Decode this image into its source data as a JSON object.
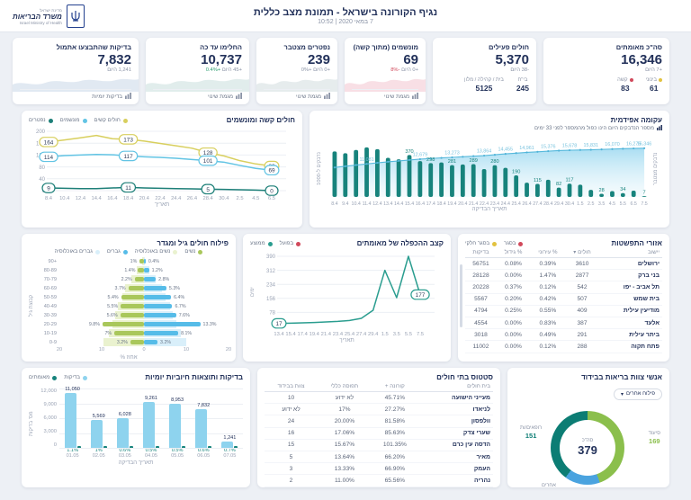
{
  "header": {
    "title": "נגיף הקורונה בישראל - תמונת מצב כללית",
    "subtitle": "7 במאי 2020 | 10:52",
    "logo_top": "מדינת ישראל",
    "logo_title": "משרד הבריאות",
    "logo_subtitle": "Israel Ministry of Health"
  },
  "icons": {
    "chevron_down": "▾"
  },
  "kpi_cards": [
    {
      "title": "סה\"כ מאומתים",
      "value": "16,346",
      "delta": "+7 היום",
      "subs": [
        {
          "label": "בינוני",
          "value": "61",
          "dot": "#e2c23f"
        },
        {
          "label": "קשה",
          "value": "83",
          "dot": "#d1495b"
        }
      ]
    },
    {
      "title": "חולים פעילים",
      "value": "5,370",
      "delta": "-38 היום",
      "subs": [
        {
          "label": "בי\"ח",
          "value": "245"
        },
        {
          "label": "בית / קהילה / מלון",
          "value": "5125"
        }
      ]
    },
    {
      "title": "מונשמים (מתוך קשה)",
      "value": "69",
      "delta": "+0 היום",
      "delta_extra": {
        "text": "-8%",
        "color": "#d1495b"
      },
      "footer": "מגמת שינוי",
      "spark_color": "#f0b9c6"
    },
    {
      "title": "נפטרים מצטבר",
      "value": "239",
      "delta": "+0 היום",
      "delta_extra": {
        "text": "+0%",
        "color": "#8a93a6"
      },
      "footer": "מגמת שינוי",
      "spark_color": "#c8d4d6"
    },
    {
      "title": "החלימו עד כה",
      "value": "10,737",
      "delta": "+45 היום",
      "delta_extra": {
        "text": "+0.4%",
        "color": "#2e9e71"
      },
      "footer": "מגמת שינוי",
      "spark_color": "#bcd8d5"
    },
    {
      "title": "בדיקות שהתבצעו אתמול",
      "value": "7,832",
      "delta": "1,241 היום",
      "footer": "בדיקות יומיות",
      "spark_color": "#bccfe2"
    }
  ],
  "chart_data": [
    {
      "type": "line",
      "id": "severe-ventilated",
      "title": "חולים קשה ומונשמים",
      "xlabel": "תאריך",
      "ylim": [
        0,
        200
      ],
      "yticks": [
        0,
        40,
        80,
        120,
        160,
        200
      ],
      "x": [
        "8.4",
        "10.4",
        "12.4",
        "14.4",
        "16.4",
        "18.4",
        "20.4",
        "22.4",
        "24.4",
        "26.4",
        "28.4",
        "30.4",
        "2.5",
        "4.5",
        "6.5"
      ],
      "legend": [
        {
          "label": "חולים קשים",
          "color": "#d8cf5e"
        },
        {
          "label": "מונשמים",
          "color": "#62c4e4"
        },
        {
          "label": "נפטרים",
          "color": "#1d7f78"
        }
      ],
      "series": [
        {
          "name": "חולים קשים",
          "color": "#d8cf5e",
          "values": [
            164,
            171,
            178,
            186,
            175,
            173,
            167,
            159,
            151,
            143,
            128,
            117,
            101,
            90,
            83
          ],
          "point_labels": {
            "0": "164",
            "5": "173",
            "10": "128",
            "14": "83"
          }
        },
        {
          "name": "מונשמים",
          "color": "#62c4e4",
          "values": [
            114,
            118,
            120,
            122,
            121,
            117,
            114,
            112,
            109,
            105,
            101,
            96,
            85,
            75,
            69
          ],
          "point_labels": {
            "0": "114",
            "5": "117",
            "10": "101",
            "14": "69"
          }
        },
        {
          "name": "נפטרים",
          "color": "#1d7f78",
          "values": [
            9,
            8,
            7,
            7,
            9,
            11,
            9,
            8,
            7,
            6,
            5,
            4,
            3,
            2,
            0
          ],
          "point_labels": {
            "0": "9",
            "5": "11",
            "10": "5",
            "14": "0"
          }
        }
      ]
    },
    {
      "type": "bar+area",
      "id": "epidemic-curve",
      "title": "עקומה אפידמית",
      "subtitle": "מספר הנדבקים היום הינו כפול מהמספר לפני 33 ימים",
      "xlabel": "תאריך הבדיקה",
      "ylabel_left": "נדבקים ל-1000",
      "ylabel_right": "נדבקים מצטבר",
      "x": [
        "8.4",
        "9.4",
        "10.4",
        "11.4",
        "12.4",
        "13.4",
        "14.4",
        "15.4",
        "16.4",
        "17.4",
        "18.4",
        "19.4",
        "20.4",
        "21.4",
        "22.4",
        "23.4",
        "24.4",
        "25.4",
        "26.4",
        "27.4",
        "28.4",
        "29.4",
        "30.4",
        "1.5",
        "2.5",
        "3.5",
        "4.5",
        "5.5",
        "6.5",
        "7.5"
      ],
      "bars": {
        "name": "נדבקים ליום",
        "color": "#17837c",
        "values": [
          402,
          386,
          414,
          437,
          421,
          345,
          332,
          370,
          316,
          298,
          304,
          281,
          287,
          289,
          246,
          280,
          257,
          190,
          126,
          115,
          152,
          82,
          117,
          108,
          62,
          28,
          52,
          34,
          56,
          7
        ],
        "labels": {
          "7": "370",
          "9": "298",
          "11": "281",
          "13": "289",
          "15": "280",
          "17": "190",
          "19": "115",
          "21": "82",
          "22": "117",
          "25": "28",
          "27": "34",
          "29": "7"
        }
      },
      "area": {
        "name": "נדבקים מצטבר",
        "color": "#56b9dc",
        "values": [
          9900,
          10290,
          10700,
          11081,
          11450,
          11800,
          12100,
          12400,
          12679,
          12900,
          13100,
          13273,
          13480,
          13680,
          13864,
          14150,
          14455,
          14700,
          14961,
          15150,
          15376,
          15550,
          15678,
          15760,
          15831,
          15950,
          16070,
          16185,
          16275,
          16346
        ],
        "labels": {
          "3": "11,081",
          "8": "12,679",
          "11": "13,273",
          "14": "13,864",
          "16": "14,455",
          "18": "14,961",
          "20": "15,376",
          "22": "15,678",
          "24": "15,831",
          "26": "16,070",
          "28": "16,275",
          "29": "16,346"
        }
      }
    },
    {
      "type": "pyramid",
      "id": "age-gender",
      "title": "פילוח חולים גיל ומגדר",
      "xlabel": "אחוז %",
      "ylabel": "קבוצת גיל",
      "legend": [
        {
          "label": "נשים",
          "color": "#a9c75b"
        },
        {
          "label": "נשים באוכלוסיה",
          "color": "#eaf2cf"
        },
        {
          "label": "גברים",
          "color": "#56bce8"
        },
        {
          "label": "גברים באוכלוסיה",
          "color": "#d9effa"
        }
      ],
      "age_groups": [
        "90+",
        "80-89",
        "70-79",
        "60-69",
        "50-59",
        "40-49",
        "30-39",
        "20-29",
        "10-19",
        "0-9"
      ],
      "women": [
        1,
        1.4,
        2.2,
        3.7,
        5.4,
        5.5,
        5.6,
        9.8,
        7,
        3.2
      ],
      "women_labels": [
        "1%",
        "1.4%",
        "2.2%",
        "3.7%",
        "5.4%",
        "5.5%",
        "5.6%",
        "9.8%",
        "7%",
        "3.2%"
      ],
      "men": [
        0.4,
        1.2,
        2.8,
        5.3,
        6.4,
        6.7,
        7.6,
        13.3,
        8.1,
        3.2
      ],
      "men_labels": [
        "0.4%",
        "1.2%",
        "2.8%",
        "5.3%",
        "6.4%",
        "6.7%",
        "7.6%",
        "13.3%",
        "8.1%",
        "3.2%"
      ],
      "women_pop": [
        0.5,
        1.6,
        3.0,
        4.5,
        5.2,
        6.2,
        6.8,
        7.4,
        8.4,
        9.6
      ],
      "men_pop": [
        0.3,
        1.2,
        2.7,
        4.3,
        5.1,
        6.2,
        6.9,
        7.7,
        8.8,
        10.1
      ],
      "xticks": [
        "20",
        "10",
        "0",
        "10",
        "20"
      ],
      "xmax": 20
    },
    {
      "type": "line",
      "id": "doubling-rate",
      "title": "קצב ההכפלה של מאומתים",
      "xlabel": "תאריך",
      "ylabel": "ימים",
      "ylim": [
        0,
        400
      ],
      "yticks": [
        78,
        156,
        234,
        312,
        390
      ],
      "legend": [
        {
          "label": "בפועל",
          "color": "#d1495b"
        },
        {
          "label": "ממוצע",
          "color": "#2a9d8f"
        }
      ],
      "x": [
        "13.4",
        "15.4",
        "17.4",
        "19.4",
        "21.4",
        "23.4",
        "25.4",
        "27.4",
        "29.4",
        "1.5",
        "3.5",
        "5.5",
        "7.5"
      ],
      "series": [
        {
          "name": "בפועל",
          "color": "#2a9d8f",
          "values": [
            17,
            18,
            20,
            22,
            25,
            28,
            33,
            45,
            90,
            312,
            160,
            390,
            177
          ],
          "point_labels": {
            "0": "17",
            "12": "177"
          }
        }
      ]
    },
    {
      "type": "bar",
      "id": "daily-tests",
      "title": "בדיקות ותוצאות חיוביות יומיות",
      "xlabel": "תאריך הבדיקה",
      "ylabel": "מס' בדיקות",
      "legend": [
        {
          "label": "בדיקות",
          "color": "#8ed3ee"
        },
        {
          "label": "מאומתים",
          "color": "#17837c"
        }
      ],
      "categories": [
        "01.05",
        "02.05",
        "03.05",
        "04.05",
        "05.05",
        "06.05",
        "07.05"
      ],
      "tests": [
        11050,
        5569,
        6028,
        9261,
        8953,
        7832,
        1241
      ],
      "tests_labels": [
        "11,050",
        "5,569",
        "6,028",
        "9,261",
        "8,953",
        "7,832",
        "1,241"
      ],
      "positive_pct": [
        "1.1%",
        "1%",
        "0.6%",
        "0.5%",
        "0.5%",
        "0.6%",
        "0.7%"
      ],
      "yticks": [
        "12,000",
        "9,000",
        "6,000",
        "3,000",
        "0"
      ],
      "ymax": 12000
    },
    {
      "type": "table",
      "id": "spread-areas",
      "title": "אזורי התפשטות",
      "legend": [
        {
          "label": "בסגר",
          "color": "#d1495b"
        },
        {
          "label": "בסגר חלקי",
          "color": "#e2c23f"
        }
      ],
      "columns": [
        "יישוב",
        "חולים ▾",
        "% עירוני",
        "% גידול",
        "בדיקות"
      ],
      "rows": [
        [
          "ירושלים",
          "3610",
          "0.39%",
          "0.08%",
          "56751"
        ],
        [
          "בני ברק",
          "2877",
          "1.47%",
          "0.00%",
          "28128"
        ],
        [
          "תל אביב - יפו",
          "542",
          "0.12%",
          "0.37%",
          "20228"
        ],
        [
          "בית שמש",
          "507",
          "0.42%",
          "0.20%",
          "5567"
        ],
        [
          "מודיעין עילית",
          "409",
          "0.55%",
          "0.25%",
          "4794"
        ],
        [
          "אלעד",
          "387",
          "0.83%",
          "0.00%",
          "4554"
        ],
        [
          "ביתר עילית",
          "291",
          "0.49%",
          "0.00%",
          "3018"
        ],
        [
          "פתח תקוה",
          "288",
          "0.12%",
          "0.00%",
          "11002"
        ]
      ]
    },
    {
      "type": "table",
      "id": "hospital-status",
      "title": "סטטוס בתי חולים",
      "columns": [
        "בית חולים",
        "קורונה +",
        "תפוסה כללי",
        "צוות בבידוד"
      ],
      "rows": [
        [
          "מעייני הישועה",
          "45.71%",
          "לא ידוע",
          "10"
        ],
        [
          "לניאדו",
          "27.27%",
          "17%",
          "לא ידוע"
        ],
        [
          "וולפסון",
          "81.58%",
          "20.00%",
          "24"
        ],
        [
          "שערי צדק",
          "85.63%",
          "17.06%",
          "16"
        ],
        [
          "הדסה עין כרם",
          "101.35%",
          "15.67%",
          "15"
        ],
        [
          "מאיר",
          "66.20%",
          "13.64%",
          "5"
        ],
        [
          "העמק",
          "66.90%",
          "13.33%",
          "3"
        ],
        [
          "נהריה",
          "65.56%",
          "11.00%",
          "2"
        ]
      ]
    },
    {
      "type": "pie",
      "id": "staff-isolation",
      "title": "אנשי צוות בריאות בבידוד",
      "dropdown_label": "פילוח אחרים",
      "total": "379",
      "total_label": "סה\"כ",
      "segments": [
        {
          "label": "סיעוד",
          "value": 169,
          "color": "#8bbf4c"
        },
        {
          "label": "אחרים",
          "value": 59,
          "color": "#4aa3df"
        },
        {
          "label": "רופאים/ות",
          "value": 151,
          "color": "#0c7d74"
        }
      ]
    }
  ]
}
